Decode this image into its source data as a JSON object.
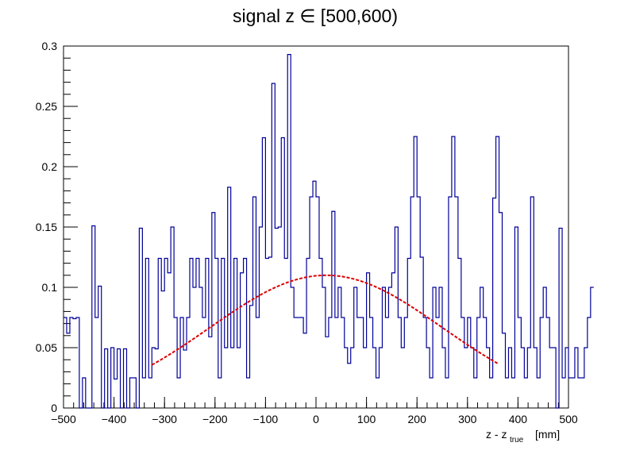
{
  "chart_data": {
    "type": "histogram",
    "title": "signal z ∈ [500,600)",
    "xlabel_main": "z - z",
    "xlabel_sub": "true",
    "xlabel_unit": "[mm]",
    "ylabel": "",
    "xlim": [
      -500,
      500
    ],
    "ylim": [
      0,
      0.3
    ],
    "x_ticks": [
      "−500",
      "−400",
      "−300",
      "−200",
      "−100",
      "0",
      "100",
      "200",
      "300",
      "400",
      "500"
    ],
    "y_ticks": [
      "0",
      "0.05",
      "0.1",
      "0.15",
      "0.2",
      "0.25",
      "0.3"
    ],
    "bin_width": 6.25,
    "values": [
      0.075,
      0.062,
      0.075,
      0.074,
      0.075,
      0,
      0.025,
      0,
      0,
      0.151,
      0.075,
      0.101,
      0,
      0.049,
      0,
      0.05,
      0.024,
      0.049,
      0,
      0.049,
      0,
      0.025,
      0.025,
      0,
      0.149,
      0.025,
      0.124,
      0.025,
      0.05,
      0.049,
      0.124,
      0.097,
      0.124,
      0.112,
      0.15,
      0.075,
      0.025,
      0.075,
      0.048,
      0.075,
      0.124,
      0.1,
      0.124,
      0.1,
      0.075,
      0.124,
      0.059,
      0.162,
      0.124,
      0.025,
      0.124,
      0.05,
      0.183,
      0.05,
      0.124,
      0.05,
      0.112,
      0.124,
      0.025,
      0.085,
      0.175,
      0.075,
      0.15,
      0.224,
      0.124,
      0.125,
      0.269,
      0.149,
      0.15,
      0.224,
      0.124,
      0.293,
      0.1,
      0.075,
      0.075,
      0.075,
      0.062,
      0.124,
      0.175,
      0.188,
      0.175,
      0.124,
      0.1,
      0.059,
      0.075,
      0.163,
      0.075,
      0.1,
      0.075,
      0.05,
      0.037,
      0.05,
      0.1,
      0.075,
      0.075,
      0.05,
      0.112,
      0.075,
      0.05,
      0.025,
      0.05,
      0.1,
      0.075,
      0.1,
      0.112,
      0.15,
      0.075,
      0.05,
      0.075,
      0.124,
      0.175,
      0.225,
      0.175,
      0.125,
      0.075,
      0.05,
      0.025,
      0.1,
      0.075,
      0.1,
      0.05,
      0.025,
      0.175,
      0.225,
      0.175,
      0.124,
      0.075,
      0.05,
      0.075,
      0.05,
      0.025,
      0.075,
      0.1,
      0.075,
      0.05,
      0.025,
      0.174,
      0.225,
      0.162,
      0.062,
      0.025,
      0.05,
      0.025,
      0.15,
      0.075,
      0.05,
      0.025,
      0.05,
      0.175,
      0.05,
      0.025,
      0.075,
      0.1,
      0.075,
      0.05,
      0.05,
      0,
      0.149,
      0.025,
      0.05,
      0.025,
      0.025,
      0.05,
      0.025,
      0.025,
      0.05,
      0.075,
      0.1
    ],
    "fit": {
      "type": "gaussian",
      "amplitude": 0.11,
      "mean": 20,
      "sigma": 230,
      "x_range": [
        -325,
        360
      ]
    },
    "colors": {
      "histogram": "#000099",
      "fit": "#dd0000",
      "axes": "#000000",
      "background": "#ffffff"
    }
  }
}
